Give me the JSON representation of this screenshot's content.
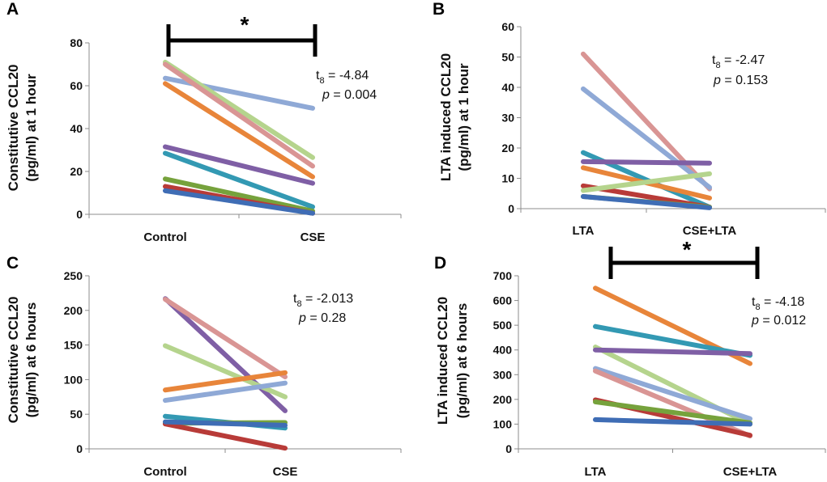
{
  "chart_data": [
    {
      "panel": "A",
      "type": "line",
      "categories": [
        "Control",
        "CSE"
      ],
      "ylabel_line1": "Constitutive CCL20",
      "ylabel_line2": "(pg/ml) at 1 hour",
      "ylim": [
        0,
        80
      ],
      "yticks": [
        0,
        20,
        40,
        60,
        80
      ],
      "stat_prefix": "t",
      "stat_sub": "8",
      "stat_value": " = -4.84",
      "p_label": "p",
      "p_value": " = 0.004",
      "significance": "*",
      "significant": true,
      "series": [
        {
          "color": "#8fa9d6",
          "values": [
            63.5,
            49.5
          ]
        },
        {
          "color": "#b5d48d",
          "values": [
            71,
            26.5
          ]
        },
        {
          "color": "#d99594",
          "values": [
            70,
            22.5
          ]
        },
        {
          "color": "#e8853a",
          "values": [
            61,
            17.5
          ]
        },
        {
          "color": "#7f5fa5",
          "values": [
            31.5,
            14.5
          ]
        },
        {
          "color": "#3399b3",
          "values": [
            28.5,
            3.5
          ]
        },
        {
          "color": "#76a23c",
          "values": [
            16.5,
            1.5
          ]
        },
        {
          "color": "#b83b38",
          "values": [
            13,
            0.5
          ]
        },
        {
          "color": "#3f6db5",
          "values": [
            11,
            0.5
          ]
        }
      ]
    },
    {
      "panel": "B",
      "type": "line",
      "categories": [
        "LTA",
        "CSE+LTA"
      ],
      "ylabel_line1": "LTA induced CCL20",
      "ylabel_line2": "(pg/ml) at 1 hour",
      "ylim": [
        0,
        60
      ],
      "yticks": [
        0,
        10,
        20,
        30,
        40,
        50,
        60
      ],
      "stat_prefix": "t",
      "stat_sub": "8",
      "stat_value": " = -2.47",
      "p_label": "p",
      "p_value": " = 0.153",
      "significance": "",
      "significant": false,
      "series": [
        {
          "color": "#d99594",
          "values": [
            51,
            6.5
          ]
        },
        {
          "color": "#8fa9d6",
          "values": [
            39.5,
            7
          ]
        },
        {
          "color": "#3399b3",
          "values": [
            18.5,
            0.5
          ]
        },
        {
          "color": "#7f5fa5",
          "values": [
            15.5,
            15
          ]
        },
        {
          "color": "#e8853a",
          "values": [
            13.5,
            3.5
          ]
        },
        {
          "color": "#b83b38",
          "values": [
            7.5,
            0.5
          ]
        },
        {
          "color": "#b5d48d",
          "values": [
            6,
            11.5
          ]
        },
        {
          "color": "#76a23c",
          "values": [
            4,
            0.5
          ]
        },
        {
          "color": "#3f6db5",
          "values": [
            4,
            0.3
          ]
        }
      ]
    },
    {
      "panel": "C",
      "type": "line",
      "categories": [
        "Control",
        "CSE"
      ],
      "ylabel_line1": "Constitutive CCL20",
      "ylabel_line2": "(pg/ml) at 6 hours",
      "ylim": [
        0,
        250
      ],
      "yticks": [
        0,
        50,
        100,
        150,
        200,
        250
      ],
      "stat_prefix": "t",
      "stat_sub": "8",
      "stat_value": " = -2.013",
      "p_label": "p",
      "p_value": " = 0.28",
      "significance": "",
      "significant": false,
      "series": [
        {
          "color": "#7f5fa5",
          "values": [
            217,
            55
          ]
        },
        {
          "color": "#d99594",
          "values": [
            216,
            104
          ]
        },
        {
          "color": "#b5d48d",
          "values": [
            149,
            75
          ]
        },
        {
          "color": "#e8853a",
          "values": [
            85,
            110
          ]
        },
        {
          "color": "#8fa9d6",
          "values": [
            70,
            95
          ]
        },
        {
          "color": "#3399b3",
          "values": [
            47,
            30
          ]
        },
        {
          "color": "#76a23c",
          "values": [
            37,
            38
          ]
        },
        {
          "color": "#b83b38",
          "values": [
            36,
            1
          ]
        },
        {
          "color": "#3f6db5",
          "values": [
            39,
            34
          ]
        }
      ]
    },
    {
      "panel": "D",
      "type": "line",
      "categories": [
        "LTA",
        "CSE+LTA"
      ],
      "ylabel_line1": "LTA induced CCL20",
      "ylabel_line2": "(pg/ml) at 6 hours",
      "ylim": [
        0,
        700
      ],
      "yticks": [
        0,
        100,
        200,
        300,
        400,
        500,
        600,
        700
      ],
      "stat_prefix": "t",
      "stat_sub": "8",
      "stat_value": " = -4.18",
      "p_label": "p",
      "p_value": " = 0.012",
      "significance": "*",
      "significant": true,
      "series": [
        {
          "color": "#e8853a",
          "values": [
            650,
            345
          ]
        },
        {
          "color": "#3399b3",
          "values": [
            495,
            378
          ]
        },
        {
          "color": "#b5d48d",
          "values": [
            412,
            100
          ]
        },
        {
          "color": "#7f5fa5",
          "values": [
            400,
            385
          ]
        },
        {
          "color": "#8fa9d6",
          "values": [
            325,
            122
          ]
        },
        {
          "color": "#d99594",
          "values": [
            315,
            52
          ]
        },
        {
          "color": "#b83b38",
          "values": [
            198,
            55
          ]
        },
        {
          "color": "#76a23c",
          "values": [
            190,
            105
          ]
        },
        {
          "color": "#3f6db5",
          "values": [
            118,
            100
          ]
        }
      ]
    }
  ]
}
